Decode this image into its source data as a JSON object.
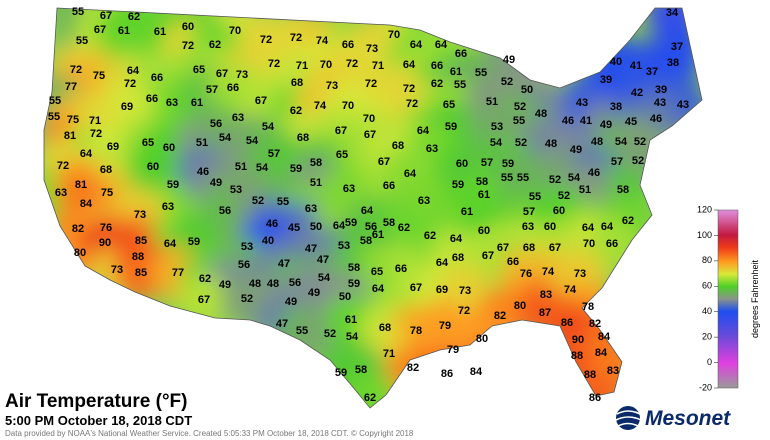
{
  "title": "Air Temperature (°F)",
  "subtitle": "5:00 PM October 18, 2018 CDT",
  "credit": "Data provided by NOAA's National Weather Service. Created 5:05:33 PM October 18, 2018 CDT. © Copyright 2018",
  "logo": "Mesonet",
  "colorbar": {
    "label": "degrees Fahrenheit",
    "lim": [
      -20,
      120
    ],
    "ticks": [
      -20,
      0,
      20,
      40,
      60,
      80,
      100,
      120
    ]
  },
  "temperatures": [
    55,
    67,
    62,
    55,
    67,
    61,
    61,
    60,
    70,
    70,
    64,
    64,
    66,
    49,
    34,
    37,
    38,
    40,
    41,
    37,
    39,
    42,
    39,
    43,
    43,
    43,
    38,
    46,
    41,
    49,
    45,
    46,
    72,
    62,
    72,
    72,
    74,
    66,
    73,
    72,
    75,
    64,
    72,
    66,
    65,
    67,
    73,
    72,
    71,
    70,
    72,
    71,
    64,
    66,
    61,
    55,
    77,
    66,
    63,
    61,
    57,
    66,
    68,
    73,
    72,
    72,
    62,
    55,
    52,
    50,
    69,
    56,
    63,
    54,
    67,
    62,
    74,
    70,
    70,
    72,
    65,
    51,
    52,
    48,
    55,
    55,
    75,
    71,
    81,
    72,
    64,
    69,
    65,
    60,
    51,
    54,
    54,
    68,
    67,
    67,
    64,
    59,
    53,
    55,
    54,
    52,
    48,
    49,
    48,
    54,
    52,
    57,
    52,
    72,
    68,
    60,
    51,
    54,
    57,
    65,
    67,
    68,
    63,
    60,
    57,
    59,
    55,
    52,
    54,
    46,
    58,
    63,
    81,
    75,
    59,
    46,
    49,
    53,
    59,
    58,
    51,
    63,
    66,
    64,
    59,
    58,
    61,
    55,
    55,
    52,
    51,
    84,
    63,
    56,
    52,
    55,
    63,
    64,
    59,
    63,
    61,
    57,
    60,
    73,
    46,
    50,
    45,
    64,
    56,
    58,
    61,
    62,
    62,
    64,
    63,
    60,
    64,
    64,
    62,
    82,
    76,
    85,
    64,
    59,
    53,
    40,
    47,
    53,
    58,
    60,
    70,
    66,
    67,
    68,
    67,
    80,
    90,
    56,
    47,
    47,
    58,
    65,
    66,
    64,
    68,
    67,
    66,
    76,
    74,
    73,
    73,
    88,
    85,
    77,
    62,
    49,
    48,
    48,
    56,
    54,
    59,
    64,
    67,
    69,
    73,
    80,
    83,
    74,
    67,
    52,
    49,
    49,
    50,
    72,
    78,
    82,
    82,
    87,
    86,
    47,
    55,
    52,
    54,
    61,
    68,
    78,
    79,
    80,
    84,
    90,
    88,
    84,
    79,
    71,
    82,
    58,
    59,
    86,
    84,
    88,
    83,
    62,
    86
  ]
}
